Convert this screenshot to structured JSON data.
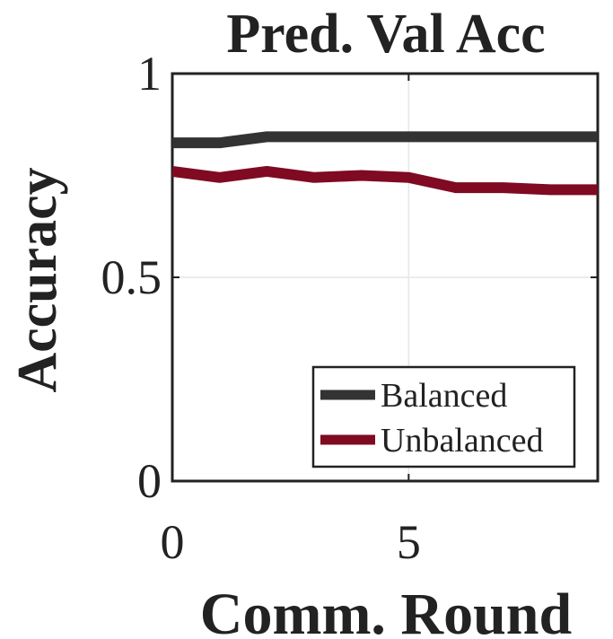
{
  "chart_data": {
    "type": "line",
    "title": "Pred. Val Acc",
    "xlabel": "Comm. Round",
    "ylabel": "Accuracy",
    "xlim": [
      0,
      9
    ],
    "ylim": [
      0,
      1
    ],
    "xticks": [
      0,
      5
    ],
    "yticks": [
      0,
      0.5,
      1
    ],
    "xtick_labels": [
      "0",
      "5"
    ],
    "ytick_labels": [
      "0",
      "0.5",
      "1"
    ],
    "grid": true,
    "legend_position": "bottom-right",
    "x": [
      0,
      1,
      2,
      3,
      4,
      5,
      6,
      7,
      8,
      9
    ],
    "series": [
      {
        "name": "Balanced",
        "color": "#333333",
        "values": [
          0.83,
          0.83,
          0.845,
          0.845,
          0.845,
          0.845,
          0.845,
          0.845,
          0.845,
          0.845
        ]
      },
      {
        "name": "Unbalanced",
        "color": "#7f0a22",
        "values": [
          0.76,
          0.745,
          0.76,
          0.745,
          0.75,
          0.745,
          0.72,
          0.72,
          0.715,
          0.715
        ]
      }
    ]
  }
}
